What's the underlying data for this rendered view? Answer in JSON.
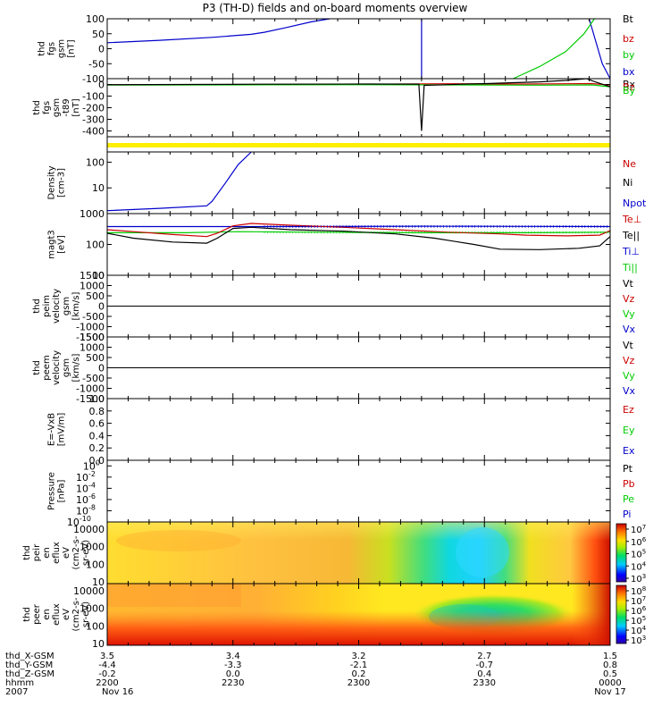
{
  "title": "P3 (TH-D) fields and on-board moments overview",
  "colors": {
    "black": "#000000",
    "red": "#cc0000",
    "green": "#00cc00",
    "blue": "#0000cc",
    "yellow": "#ffee00"
  },
  "chart_data": [
    {
      "id": "fgs",
      "type": "line",
      "ylabel": [
        "thd",
        "fgs",
        "gsm",
        "[nT]"
      ],
      "ylim": [
        -100,
        100
      ],
      "scale": "linear",
      "yticks": [
        "100",
        "50",
        "0",
        "-50",
        "-100"
      ],
      "legend": [
        {
          "label": "Bt",
          "color": "#000000"
        },
        {
          "label": "bz",
          "color": "#cc0000"
        },
        {
          "label": "by",
          "color": "#00cc00"
        },
        {
          "label": "bx",
          "color": "#0000cc"
        }
      ],
      "series": [
        {
          "color": "#0000cc",
          "points": [
            [
              0,
              20
            ],
            [
              20,
              28
            ],
            [
              40,
              38
            ],
            [
              55,
              48
            ],
            [
              60,
              55
            ],
            [
              68,
              70
            ],
            [
              78,
              90
            ],
            [
              85,
              100
            ]
          ]
        },
        {
          "color": "#0000cc",
          "points": [
            [
              120,
              -100
            ],
            [
              120,
              100
            ]
          ]
        },
        {
          "color": "#0000cc",
          "points": [
            [
              184,
              100
            ],
            [
              189,
              -50
            ],
            [
              192,
              -100
            ]
          ]
        },
        {
          "color": "#00cc00",
          "points": [
            [
              155,
              -100
            ],
            [
              165,
              -60
            ],
            [
              175,
              -10
            ],
            [
              182,
              50
            ],
            [
              186,
              100
            ]
          ]
        }
      ]
    },
    {
      "id": "fgs_t89",
      "type": "line",
      "ylabel": [
        "thd",
        "fgs",
        "gsm",
        "-t89",
        "[nT]"
      ],
      "ylim": [
        -450,
        50
      ],
      "scale": "linear",
      "yticks": [
        "0",
        "-100",
        "-200",
        "-300",
        "-400"
      ],
      "legend": [
        {
          "label": "Bx",
          "color": "#000000"
        },
        {
          "label": "Bz",
          "color": "#cc0000"
        },
        {
          "label": "By",
          "color": "#00cc00"
        }
      ],
      "series": [
        {
          "color": "#cc0000",
          "points": [
            [
              0,
              -3
            ],
            [
              60,
              0
            ],
            [
              100,
              2
            ],
            [
              130,
              6
            ],
            [
              160,
              4
            ],
            [
              185,
              8
            ],
            [
              192,
              -5
            ]
          ]
        },
        {
          "color": "#00cc00",
          "points": [
            [
              0,
              -5
            ],
            [
              60,
              -3
            ],
            [
              100,
              -2
            ],
            [
              130,
              -4
            ],
            [
              165,
              -6
            ],
            [
              185,
              -4
            ],
            [
              192,
              -20
            ]
          ]
        },
        {
          "color": "#000000",
          "points": [
            [
              0,
              -2
            ],
            [
              60,
              2
            ],
            [
              100,
              4
            ],
            [
              119,
              3
            ],
            [
              120,
              -400
            ],
            [
              121,
              -8
            ],
            [
              125,
              -5
            ],
            [
              135,
              2
            ],
            [
              145,
              8
            ],
            [
              155,
              15
            ],
            [
              165,
              22
            ],
            [
              175,
              35
            ],
            [
              183,
              50
            ],
            [
              186,
              25
            ],
            [
              192,
              -20
            ]
          ]
        }
      ]
    },
    {
      "id": "state",
      "type": "bar",
      "color": "#ffee00"
    },
    {
      "id": "density",
      "type": "line",
      "ylabel": [
        "Density",
        "[cm-3]"
      ],
      "ylim": [
        1,
        250
      ],
      "scale": "log",
      "yticks": [
        {
          "v": 100,
          "l": "100"
        },
        {
          "v": 10,
          "l": "10"
        }
      ],
      "legend": [
        {
          "label": "Ne",
          "color": "#cc0000"
        },
        {
          "label": "Ni",
          "color": "#000000"
        },
        {
          "label": "Npot",
          "color": "#0000cc"
        }
      ],
      "series": [
        {
          "color": "#0000cc",
          "points": [
            [
              0,
              1.3
            ],
            [
              20,
              1.6
            ],
            [
              38,
              2
            ],
            [
              40,
              3
            ],
            [
              45,
              15
            ],
            [
              50,
              80
            ],
            [
              55,
              250
            ]
          ]
        }
      ]
    },
    {
      "id": "temperature",
      "type": "line",
      "ylabel": [
        "magt3",
        "[eV]"
      ],
      "ylim": [
        10,
        1000
      ],
      "scale": "log",
      "yticks": [
        {
          "v": 1000,
          "l": "1000"
        },
        {
          "v": 100,
          "l": "100"
        },
        {
          "v": 10,
          "l": "10"
        }
      ],
      "legend": [
        {
          "label": "Te⊥",
          "color": "#cc0000"
        },
        {
          "label": "Te||",
          "color": "#000000"
        },
        {
          "label": "Ti⊥",
          "color": "#0000cc"
        },
        {
          "label": "Ti||",
          "color": "#00cc00"
        }
      ],
      "series": [
        {
          "color": "#0000cc",
          "points": [
            [
              0,
              380
            ],
            [
              40,
              380
            ],
            [
              80,
              380
            ],
            [
              120,
              390
            ],
            [
              160,
              385
            ],
            [
              192,
              380
            ]
          ]
        },
        {
          "color": "#00cc00",
          "points": [
            [
              0,
              240
            ],
            [
              30,
              240
            ],
            [
              50,
              260
            ],
            [
              80,
              250
            ],
            [
              120,
              240
            ],
            [
              160,
              240
            ],
            [
              192,
              250
            ]
          ]
        },
        {
          "color": "#cc0000",
          "points": [
            [
              0,
              300
            ],
            [
              10,
              260
            ],
            [
              25,
              210
            ],
            [
              38,
              180
            ],
            [
              42,
              230
            ],
            [
              48,
              400
            ],
            [
              55,
              480
            ],
            [
              70,
              420
            ],
            [
              90,
              360
            ],
            [
              110,
              300
            ],
            [
              130,
              250
            ],
            [
              150,
              220
            ],
            [
              160,
              200
            ],
            [
              175,
              190
            ],
            [
              188,
              200
            ],
            [
              192,
              280
            ]
          ]
        },
        {
          "color": "#000000",
          "points": [
            [
              0,
              230
            ],
            [
              10,
              160
            ],
            [
              25,
              120
            ],
            [
              38,
              110
            ],
            [
              42,
              160
            ],
            [
              48,
              330
            ],
            [
              55,
              360
            ],
            [
              70,
              300
            ],
            [
              90,
              270
            ],
            [
              110,
              220
            ],
            [
              125,
              160
            ],
            [
              140,
              100
            ],
            [
              150,
              70
            ],
            [
              165,
              68
            ],
            [
              180,
              75
            ],
            [
              188,
              90
            ],
            [
              192,
              180
            ]
          ]
        }
      ]
    },
    {
      "id": "peim",
      "type": "line",
      "ylabel": [
        "thd",
        "peim",
        "velocity",
        "gsm",
        "[km/s]"
      ],
      "ylim": [
        -1500,
        1500
      ],
      "scale": "linear",
      "yticks": [
        "1500",
        "1000",
        "500",
        "0",
        "-500",
        "-1000",
        "-1500"
      ],
      "legend": [
        {
          "label": "Vt",
          "color": "#000000"
        },
        {
          "label": "Vz",
          "color": "#cc0000"
        },
        {
          "label": "Vy",
          "color": "#00cc00"
        },
        {
          "label": "Vx",
          "color": "#0000cc"
        }
      ],
      "series": []
    },
    {
      "id": "peem",
      "type": "line",
      "ylabel": [
        "thd",
        "peem",
        "velocity",
        "gsm",
        "[km/s]"
      ],
      "ylim": [
        -1500,
        1500
      ],
      "scale": "linear",
      "yticks": [
        "1500",
        "1000",
        "500",
        "0",
        "-500",
        "-1000",
        "-1500"
      ],
      "legend": [
        {
          "label": "Vt",
          "color": "#000000"
        },
        {
          "label": "Vz",
          "color": "#cc0000"
        },
        {
          "label": "Vy",
          "color": "#00cc00"
        },
        {
          "label": "Vx",
          "color": "#0000cc"
        }
      ],
      "series": []
    },
    {
      "id": "efield",
      "type": "line",
      "ylabel": [
        "E=-VxB",
        "[mV/m]"
      ],
      "ylim": [
        0,
        1
      ],
      "scale": "linear",
      "yticks": [
        "1.0",
        "0.8",
        "0.6",
        "0.4",
        "0.2",
        "0.0"
      ],
      "legend": [
        {
          "label": "Ez",
          "color": "#cc0000"
        },
        {
          "label": "Ey",
          "color": "#00cc00"
        },
        {
          "label": "Ex",
          "color": "#0000cc"
        }
      ],
      "series": []
    },
    {
      "id": "pressure",
      "type": "line",
      "ylabel": [
        "Pressure",
        "[nPa]"
      ],
      "ylim": [
        -10,
        1
      ],
      "scale": "log",
      "yticks": [
        {
          "e": "0"
        },
        {
          "e": "-2"
        },
        {
          "e": "-4"
        },
        {
          "e": "-6"
        },
        {
          "e": "-8"
        },
        {
          "e": "-10"
        }
      ],
      "legend": [
        {
          "label": "Pt",
          "color": "#000000"
        },
        {
          "label": "Pb",
          "color": "#cc0000"
        },
        {
          "label": "Pe",
          "color": "#00cc00"
        },
        {
          "label": "Pi",
          "color": "#0000cc"
        }
      ],
      "series": []
    },
    {
      "id": "peir",
      "type": "heatmap",
      "ylabel": [
        "thd",
        "peir",
        "en",
        "eflux",
        "eV",
        "(cm2-s-",
        "sr-eV)"
      ],
      "ylim": [
        8,
        25000
      ],
      "scale": "log",
      "yticks": [
        {
          "v": 10000,
          "l": "10000"
        },
        {
          "v": 1000,
          "l": "1000"
        },
        {
          "v": 100,
          "l": "100"
        },
        {
          "v": 10,
          "l": "10"
        }
      ],
      "colorbar": {
        "ticks": [
          {
            "e": "7"
          },
          {
            "e": "6"
          },
          {
            "e": "5"
          },
          {
            "e": "4"
          },
          {
            "e": "3"
          }
        ]
      }
    },
    {
      "id": "peer",
      "type": "heatmap",
      "ylabel": [
        "thd",
        "peer",
        "en",
        "eflux",
        "eV",
        "(cm2-s-",
        "sr-eV)"
      ],
      "ylim": [
        8,
        25000
      ],
      "scale": "log",
      "yticks": [
        {
          "v": 10000,
          "l": "10000"
        },
        {
          "v": 1000,
          "l": "1000"
        },
        {
          "v": 100,
          "l": "100"
        },
        {
          "v": 10,
          "l": "10"
        }
      ],
      "colorbar": {
        "ticks": [
          {
            "e": "8"
          },
          {
            "e": "7"
          },
          {
            "e": "6"
          },
          {
            "e": "5"
          },
          {
            "e": "4"
          },
          {
            "e": "3"
          }
        ]
      }
    }
  ],
  "x_axis": {
    "row_labels": [
      "thd_X-GSM",
      "thd_Y-GSM",
      "thd_Z-GSM",
      "hhmm",
      "2007"
    ],
    "ticks": [
      {
        "t": 0,
        "vals": [
          "3.5",
          "-4.4",
          "-0.2",
          "2200",
          "Nov 16"
        ]
      },
      {
        "t": 30,
        "vals": [
          "3.4",
          "-3.3",
          "0.0",
          "2230",
          ""
        ]
      },
      {
        "t": 60,
        "vals": [
          "3.2",
          "-2.1",
          "0.2",
          "2300",
          ""
        ]
      },
      {
        "t": 90,
        "vals": [
          "2.7",
          "-0.7",
          "0.4",
          "2330",
          ""
        ]
      },
      {
        "t": 120,
        "vals": [
          "1.5",
          "0.8",
          "0.5",
          "0000",
          "Nov 17"
        ]
      }
    ],
    "range_minutes": [
      0,
      120
    ]
  }
}
